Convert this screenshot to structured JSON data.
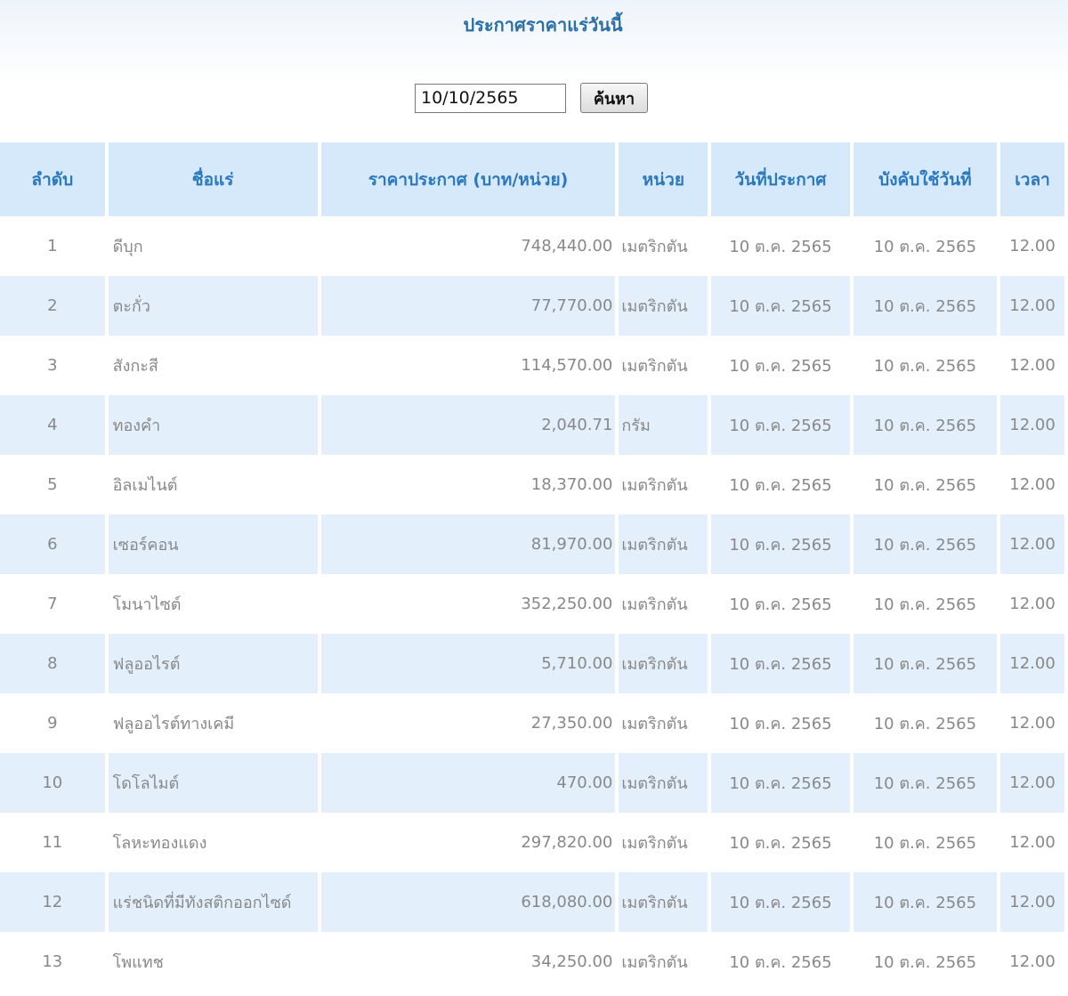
{
  "page": {
    "title": "ประกาศราคาแร่วันนี้"
  },
  "search": {
    "date_value": "10/10/2565",
    "button_label": "ค้นหา"
  },
  "table": {
    "headers": [
      "ลำดับ",
      "ชื่อแร่",
      "ราคาประกาศ (บาท/หน่วย)",
      "หน่วย",
      "วันที่ประกาศ",
      "บังคับใช้วันที่",
      "เวลา"
    ],
    "rows": [
      {
        "no": "1",
        "name": "ดีบุก",
        "price": "748,440.00",
        "unit": "เมตริกตัน",
        "announced": "10 ต.ค. 2565",
        "effective": "10 ต.ค. 2565",
        "time": "12.00"
      },
      {
        "no": "2",
        "name": "ตะกั่ว",
        "price": "77,770.00",
        "unit": "เมตริกตัน",
        "announced": "10 ต.ค. 2565",
        "effective": "10 ต.ค. 2565",
        "time": "12.00"
      },
      {
        "no": "3",
        "name": "สังกะสี",
        "price": "114,570.00",
        "unit": "เมตริกตัน",
        "announced": "10 ต.ค. 2565",
        "effective": "10 ต.ค. 2565",
        "time": "12.00"
      },
      {
        "no": "4",
        "name": "ทองคำ",
        "price": "2,040.71",
        "unit": "กรัม",
        "announced": "10 ต.ค. 2565",
        "effective": "10 ต.ค. 2565",
        "time": "12.00"
      },
      {
        "no": "5",
        "name": "อิลเมไนต์",
        "price": "18,370.00",
        "unit": "เมตริกตัน",
        "announced": "10 ต.ค. 2565",
        "effective": "10 ต.ค. 2565",
        "time": "12.00"
      },
      {
        "no": "6",
        "name": "เซอร์คอน",
        "price": "81,970.00",
        "unit": "เมตริกตัน",
        "announced": "10 ต.ค. 2565",
        "effective": "10 ต.ค. 2565",
        "time": "12.00"
      },
      {
        "no": "7",
        "name": "โมนาไซต์",
        "price": "352,250.00",
        "unit": "เมตริกตัน",
        "announced": "10 ต.ค. 2565",
        "effective": "10 ต.ค. 2565",
        "time": "12.00"
      },
      {
        "no": "8",
        "name": "ฟลูออไรต์",
        "price": "5,710.00",
        "unit": "เมตริกตัน",
        "announced": "10 ต.ค. 2565",
        "effective": "10 ต.ค. 2565",
        "time": "12.00"
      },
      {
        "no": "9",
        "name": "ฟลูออไรต์ทางเคมี",
        "price": "27,350.00",
        "unit": "เมตริกตัน",
        "announced": "10 ต.ค. 2565",
        "effective": "10 ต.ค. 2565",
        "time": "12.00"
      },
      {
        "no": "10",
        "name": "โดโลไมต์",
        "price": "470.00",
        "unit": "เมตริกตัน",
        "announced": "10 ต.ค. 2565",
        "effective": "10 ต.ค. 2565",
        "time": "12.00"
      },
      {
        "no": "11",
        "name": "โลหะทองแดง",
        "price": "297,820.00",
        "unit": "เมตริกตัน",
        "announced": "10 ต.ค. 2565",
        "effective": "10 ต.ค. 2565",
        "time": "12.00"
      },
      {
        "no": "12",
        "name": "แร่ชนิดที่มีทังสติกออกไซด์",
        "price": "618,080.00",
        "unit": "เมตริกตัน",
        "announced": "10 ต.ค. 2565",
        "effective": "10 ต.ค. 2565",
        "time": "12.00"
      },
      {
        "no": "13",
        "name": "โพแทช",
        "price": "34,250.00",
        "unit": "เมตริกตัน",
        "announced": "10 ต.ค. 2565",
        "effective": "10 ต.ค. 2565",
        "time": "12.00"
      }
    ]
  }
}
